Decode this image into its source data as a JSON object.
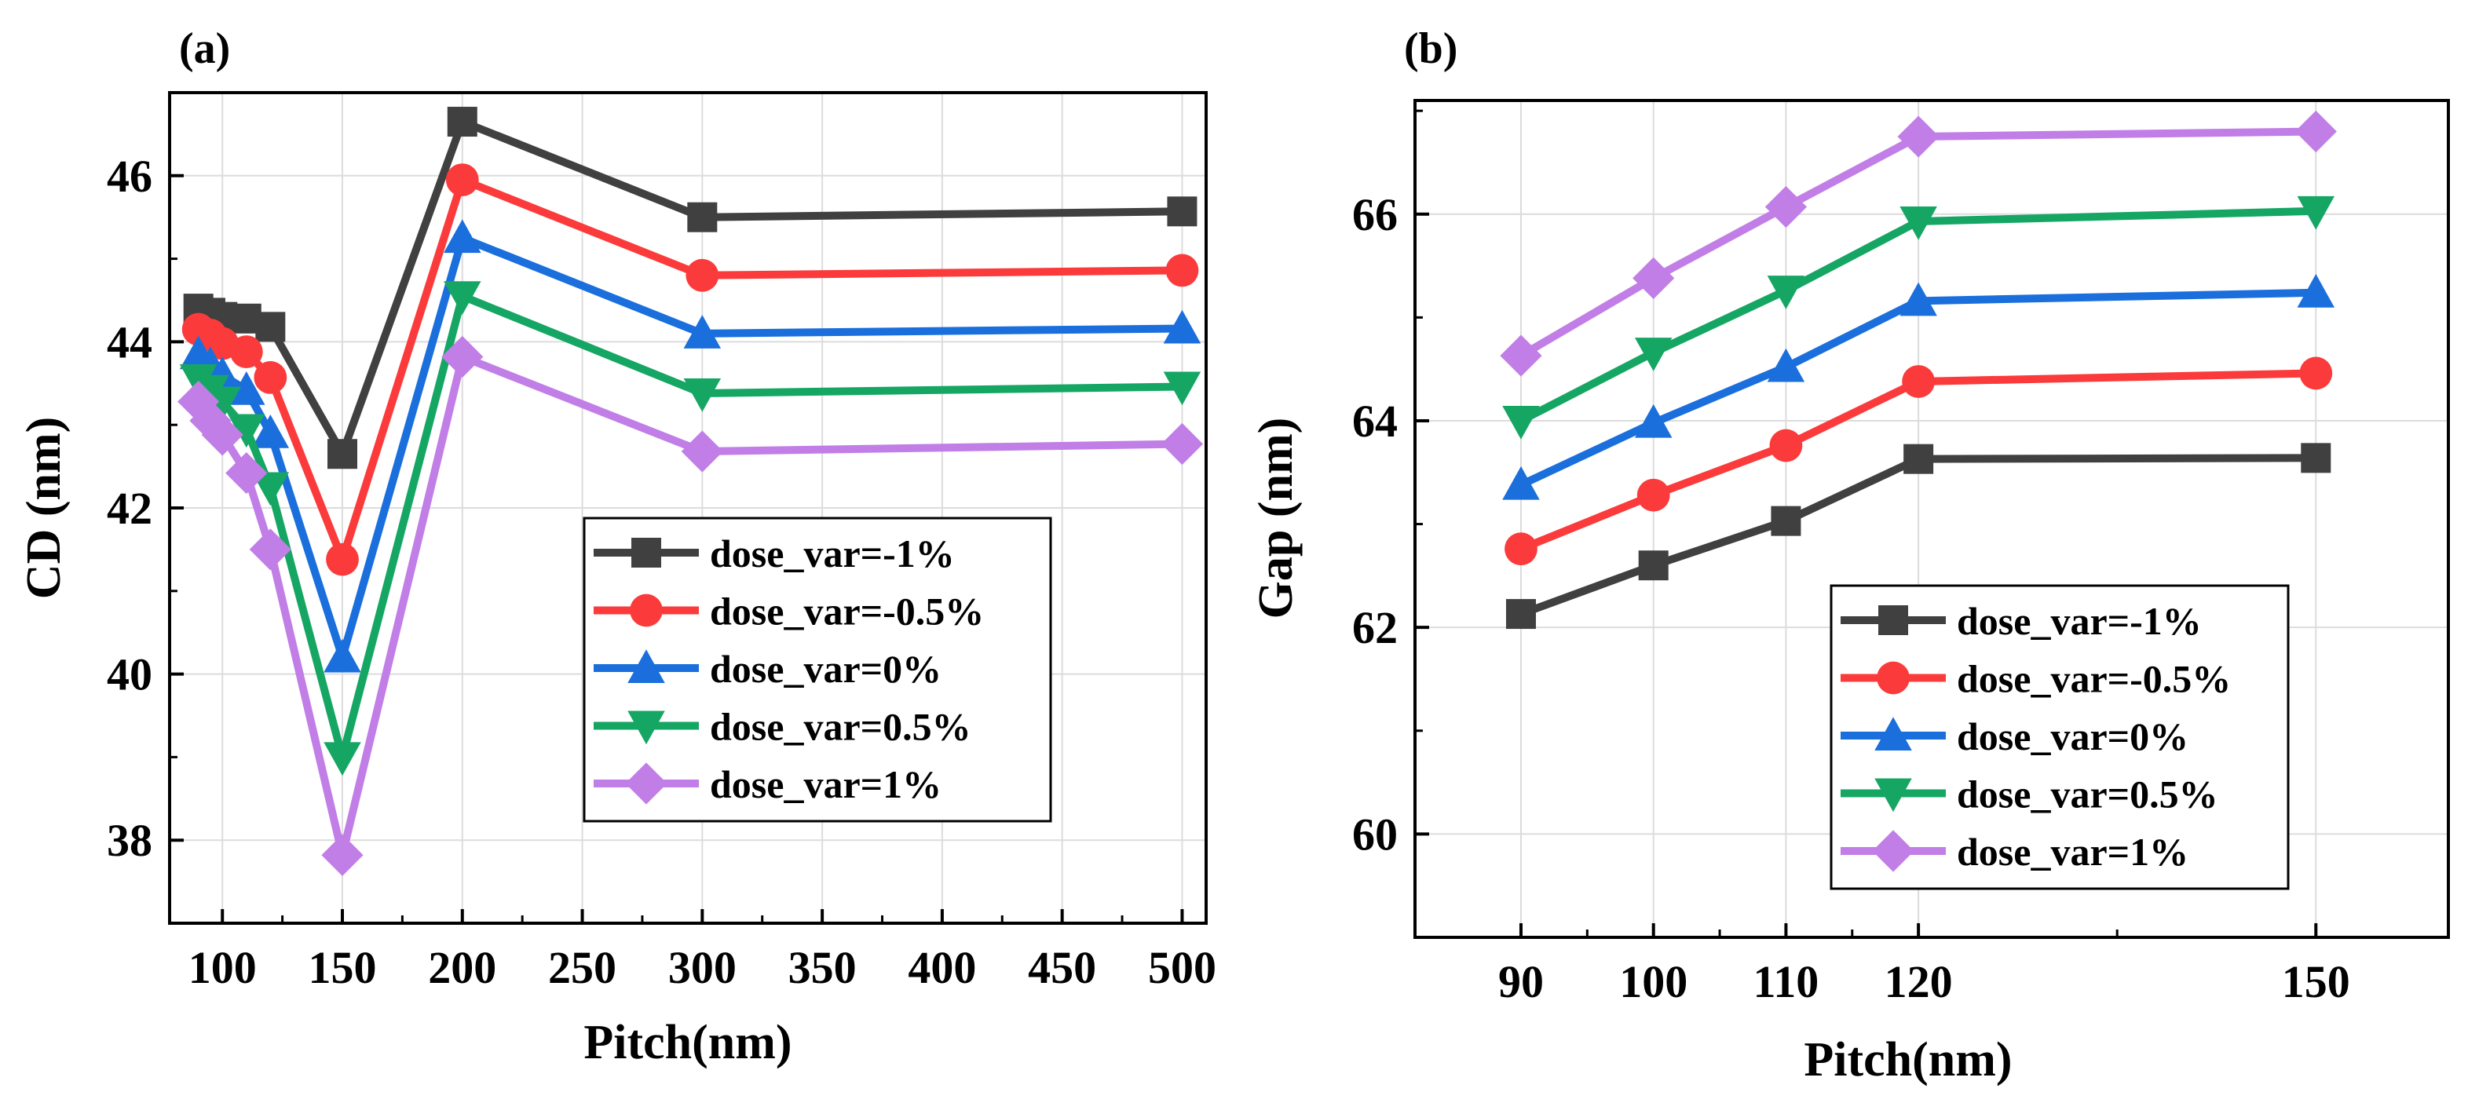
{
  "colors": {
    "dose_m1": "#404040",
    "dose_m05": "#fb3b3b",
    "dose_0": "#1a6fdc",
    "dose_05": "#16a664",
    "dose_1": "#c17ee6",
    "grid": "#dcdcdc",
    "axis": "#000000"
  },
  "chart_data": [
    {
      "panel_label": "(a)",
      "type": "line",
      "title": "",
      "xlabel": "Pitch(nm)",
      "ylabel": "CD (nm)",
      "x": [
        90,
        95,
        100,
        110,
        120,
        150,
        200,
        300,
        500
      ],
      "xlim": [
        78,
        510
      ],
      "ylim": [
        37,
        47
      ],
      "xticks": [
        100,
        150,
        200,
        250,
        300,
        350,
        400,
        450,
        500
      ],
      "xtick_labels": [
        "100",
        "150",
        "200",
        "250",
        "300",
        "350",
        "400",
        "450",
        "500"
      ],
      "yticks": [
        38,
        40,
        42,
        44,
        46
      ],
      "ytick_labels": [
        "38",
        "40",
        "42",
        "44",
        "46"
      ],
      "grid": true,
      "legend_position": "center-right",
      "series": [
        {
          "name": "dose_var=-1%",
          "marker": "square",
          "color_key": "dose_m1",
          "values": [
            44.4,
            44.35,
            44.3,
            44.28,
            44.18,
            42.65,
            46.65,
            45.5,
            45.57
          ]
        },
        {
          "name": "dose_var=-0.5%",
          "marker": "circle",
          "color_key": "dose_m05",
          "values": [
            44.15,
            44.08,
            43.98,
            43.88,
            43.57,
            41.38,
            45.95,
            44.8,
            44.86
          ]
        },
        {
          "name": "dose_var=0%",
          "marker": "triangle-up",
          "color_key": "dose_0",
          "values": [
            43.85,
            43.72,
            43.6,
            43.42,
            42.9,
            40.2,
            45.25,
            44.1,
            44.16
          ]
        },
        {
          "name": "dose_var=0.5%",
          "marker": "triangle-down",
          "color_key": "dose_05",
          "values": [
            43.55,
            43.42,
            43.28,
            42.95,
            42.25,
            39.0,
            44.55,
            43.38,
            43.46
          ]
        },
        {
          "name": "dose_var=1%",
          "marker": "diamond",
          "color_key": "dose_1",
          "values": [
            43.28,
            43.05,
            42.88,
            42.42,
            41.5,
            37.82,
            43.82,
            42.68,
            42.77
          ]
        }
      ]
    },
    {
      "panel_label": "(b)",
      "type": "line",
      "title": "",
      "xlabel": "Pitch(nm)",
      "ylabel": "Gap (nm)",
      "x": [
        90,
        100,
        110,
        120,
        150
      ],
      "xlim": [
        82,
        160
      ],
      "ylim": [
        59,
        67.1
      ],
      "xticks": [
        90,
        100,
        110,
        120,
        150
      ],
      "xtick_labels": [
        "90",
        "100",
        "110",
        "120",
        "150"
      ],
      "yticks": [
        60,
        62,
        64,
        66
      ],
      "ytick_labels": [
        "60",
        "62",
        "64",
        "66"
      ],
      "grid": true,
      "legend_position": "lower-center",
      "series": [
        {
          "name": "dose_var=-1%",
          "marker": "square",
          "color_key": "dose_m1",
          "values": [
            62.13,
            62.6,
            63.03,
            63.63,
            63.64
          ]
        },
        {
          "name": "dose_var=-0.5%",
          "marker": "circle",
          "color_key": "dose_m05",
          "values": [
            62.76,
            63.28,
            63.76,
            64.38,
            64.46
          ]
        },
        {
          "name": "dose_var=0%",
          "marker": "triangle-up",
          "color_key": "dose_0",
          "values": [
            63.38,
            63.98,
            64.52,
            65.16,
            65.24
          ]
        },
        {
          "name": "dose_var=0.5%",
          "marker": "triangle-down",
          "color_key": "dose_05",
          "values": [
            64.0,
            64.66,
            65.26,
            65.93,
            66.03
          ]
        },
        {
          "name": "dose_var=1%",
          "marker": "diamond",
          "color_key": "dose_1",
          "values": [
            64.63,
            65.38,
            66.07,
            66.75,
            66.8
          ]
        }
      ]
    }
  ]
}
